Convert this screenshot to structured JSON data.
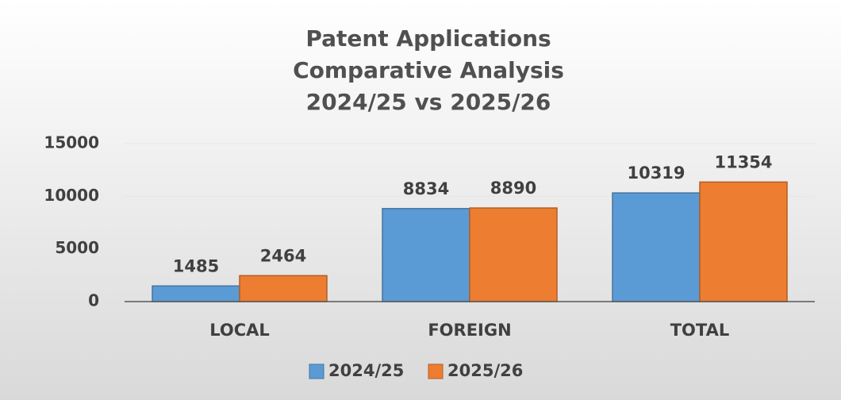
{
  "chart_data": {
    "type": "bar",
    "title": [
      "Patent Applications",
      "Comparative Analysis",
      "2024/25 vs 2025/26"
    ],
    "categories": [
      "LOCAL",
      "FOREIGN",
      "TOTAL"
    ],
    "series": [
      {
        "name": "2024/25",
        "color": "#5b9bd5",
        "values": [
          1485,
          8834,
          10319
        ]
      },
      {
        "name": "2025/26",
        "color": "#ed7d31",
        "values": [
          2464,
          8890,
          11354
        ]
      }
    ],
    "ylim": [
      0,
      15000
    ],
    "yticks": [
      0,
      5000,
      10000,
      15000
    ],
    "grid": true,
    "legend": "bottom"
  }
}
